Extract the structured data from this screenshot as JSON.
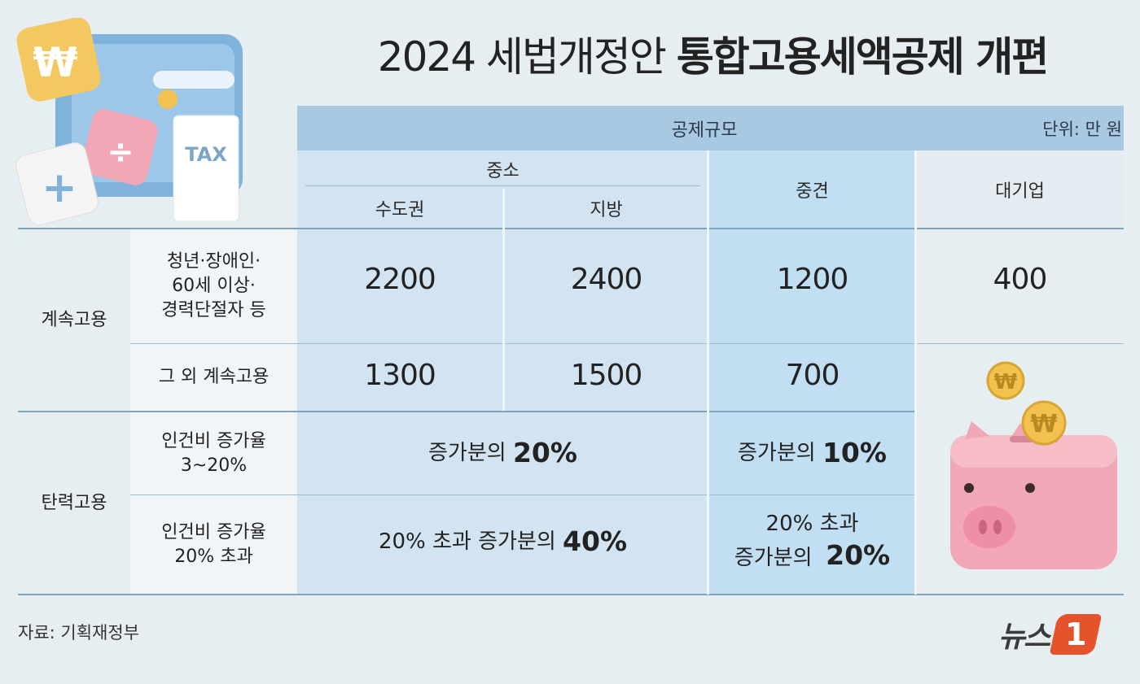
{
  "title": {
    "light": "2024 세법개정안 ",
    "bold": "통합고용세액공제 개편"
  },
  "header": {
    "band_label": "공제규모",
    "unit": "단위: 만 원",
    "sme": "중소",
    "capital": "수도권",
    "regional": "지방",
    "midsize": "중견",
    "large": "대기업"
  },
  "rows": {
    "continuous_label": "계속고용",
    "flexible_label": "탄력고용",
    "r1_label": [
      "청년·장애인·",
      "60세 이상·",
      "경력단절자 등"
    ],
    "r1_values": [
      "2200",
      "2400",
      "1200",
      "400"
    ],
    "r2_label": "그 외 계속고용",
    "r2_values": [
      "1300",
      "1500",
      "700"
    ],
    "r3_label": [
      "인건비 증가율",
      "3~20%"
    ],
    "r3_sme": {
      "prefix": "증가분의 ",
      "value": "20%"
    },
    "r3_mid": {
      "prefix": "증가분의 ",
      "value": "10%"
    },
    "r4_label": [
      "인건비 증가율",
      "20% 초과"
    ],
    "r4_sme": {
      "prefix": "20% 초과 증가분의 ",
      "value": "40%"
    },
    "r4_mid": {
      "line1": "20% 초과",
      "prefix": "증가분의 ",
      "value": "20%"
    }
  },
  "source": "자료: 기획재정부",
  "logo": {
    "text": "뉴스",
    "mark": "1"
  },
  "colors": {
    "header_band": "#a9c8e1",
    "sme_bg": "#d2e4f1",
    "mid_bg": "#c1def3",
    "logo_orange": "#e4532b"
  },
  "illustration": {
    "tax_label": "TAX",
    "coin_symbol": "₩",
    "plus": "+",
    "divide": "÷"
  }
}
